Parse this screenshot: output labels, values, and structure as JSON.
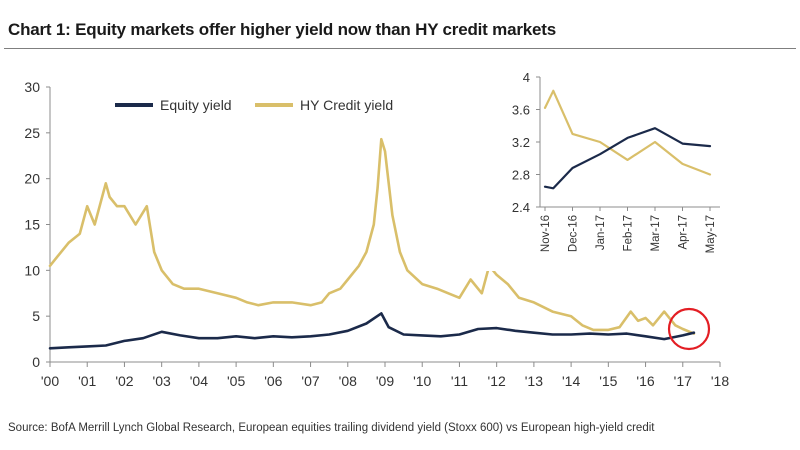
{
  "title": "Chart 1: Equity markets offer higher yield now than HY credit markets",
  "source": "Source: BofA Merrill Lynch Global Research, European equities trailing dividend yield (Stoxx 600) vs European high-yield credit",
  "colors": {
    "equity": "#1b2a4a",
    "hy": "#d9bf6a",
    "highlight": "#e31e24",
    "axis": "#8c8c8c"
  },
  "chart_data": [
    {
      "type": "line",
      "title": "",
      "xlabel": "",
      "ylabel": "",
      "xlim": [
        2000,
        2018
      ],
      "ylim": [
        0,
        30
      ],
      "x_tick_labels": [
        "'00",
        "'01",
        "'02",
        "'03",
        "'04",
        "'05",
        "'06",
        "'07",
        "'08",
        "'09",
        "'10",
        "'11",
        "'12",
        "'13",
        "'14",
        "'15",
        "'16",
        "'17",
        "'18"
      ],
      "y_ticks": [
        0,
        5,
        10,
        15,
        20,
        25,
        30
      ],
      "legend": [
        "Equity yield",
        "HY Credit yield"
      ],
      "annotation": "red circle highlighting the 2017 crossover",
      "series": [
        {
          "name": "Equity yield",
          "x": [
            2000,
            2000.5,
            2001,
            2001.5,
            2002,
            2002.5,
            2003,
            2003.5,
            2004,
            2004.5,
            2005,
            2005.5,
            2006,
            2006.5,
            2007,
            2007.5,
            2008,
            2008.5,
            2008.9,
            2009.1,
            2009.5,
            2010,
            2010.5,
            2011,
            2011.5,
            2012,
            2012.5,
            2013,
            2013.5,
            2014,
            2014.5,
            2015,
            2015.5,
            2016,
            2016.5,
            2017,
            2017.3
          ],
          "y": [
            1.5,
            1.6,
            1.7,
            1.8,
            2.3,
            2.6,
            3.3,
            2.9,
            2.6,
            2.6,
            2.8,
            2.6,
            2.8,
            2.7,
            2.8,
            3.0,
            3.4,
            4.2,
            5.3,
            3.8,
            3.0,
            2.9,
            2.8,
            3.0,
            3.6,
            3.7,
            3.4,
            3.2,
            3.0,
            3.0,
            3.1,
            3.0,
            3.1,
            2.8,
            2.5,
            2.9,
            3.2
          ]
        },
        {
          "name": "HY Credit yield",
          "x": [
            2000,
            2000.2,
            2000.5,
            2000.8,
            2001,
            2001.2,
            2001.5,
            2001.6,
            2001.8,
            2002,
            2002.3,
            2002.6,
            2002.8,
            2003,
            2003.3,
            2003.6,
            2004,
            2004.5,
            2005,
            2005.3,
            2005.6,
            2006,
            2006.5,
            2007,
            2007.3,
            2007.5,
            2007.8,
            2008,
            2008.3,
            2008.5,
            2008.7,
            2008.8,
            2008.9,
            2009,
            2009.2,
            2009.4,
            2009.6,
            2010,
            2010.4,
            2010.7,
            2011,
            2011.3,
            2011.6,
            2011.8,
            2012,
            2012.3,
            2012.6,
            2013,
            2013.5,
            2014,
            2014.3,
            2014.6,
            2015,
            2015.3,
            2015.6,
            2015.8,
            2016,
            2016.2,
            2016.5,
            2016.8,
            2017,
            2017.3
          ],
          "y": [
            10.5,
            11.5,
            13,
            14,
            17,
            15,
            19.5,
            18,
            17,
            17,
            15,
            17,
            12,
            10,
            8.5,
            8,
            8,
            7.5,
            7,
            6.5,
            6.2,
            6.5,
            6.5,
            6.2,
            6.5,
            7.5,
            8,
            9,
            10.5,
            12,
            15,
            19,
            24.3,
            23,
            16,
            12,
            10,
            8.5,
            8,
            7.5,
            7,
            9,
            7.5,
            10.5,
            9.5,
            8.5,
            7,
            6.5,
            5.5,
            5,
            4,
            3.5,
            3.5,
            3.8,
            5.5,
            4.5,
            4.8,
            4,
            5.5,
            4,
            3.6,
            3.1
          ]
        }
      ]
    },
    {
      "type": "line",
      "title": "",
      "inset": true,
      "ylim": [
        2.4,
        4
      ],
      "y_ticks": [
        2.4,
        2.8,
        3.2,
        3.6,
        4
      ],
      "y_tick_labels": [
        "2.4",
        "2.8",
        "3.2",
        "3.6",
        "4"
      ],
      "categories": [
        "Nov-16",
        "Dec-16",
        "Jan-17",
        "Feb-17",
        "Mar-17",
        "Apr-17",
        "May-17"
      ],
      "x": [
        0,
        0.3,
        1,
        2,
        3,
        4,
        5,
        6
      ],
      "series": [
        {
          "name": "Equity yield",
          "values": [
            2.65,
            2.63,
            2.88,
            3.05,
            3.25,
            3.37,
            3.18,
            3.15
          ]
        },
        {
          "name": "HY Credit yield",
          "values": [
            3.62,
            3.83,
            3.3,
            3.2,
            2.98,
            3.2,
            2.93,
            2.8
          ]
        }
      ]
    }
  ]
}
